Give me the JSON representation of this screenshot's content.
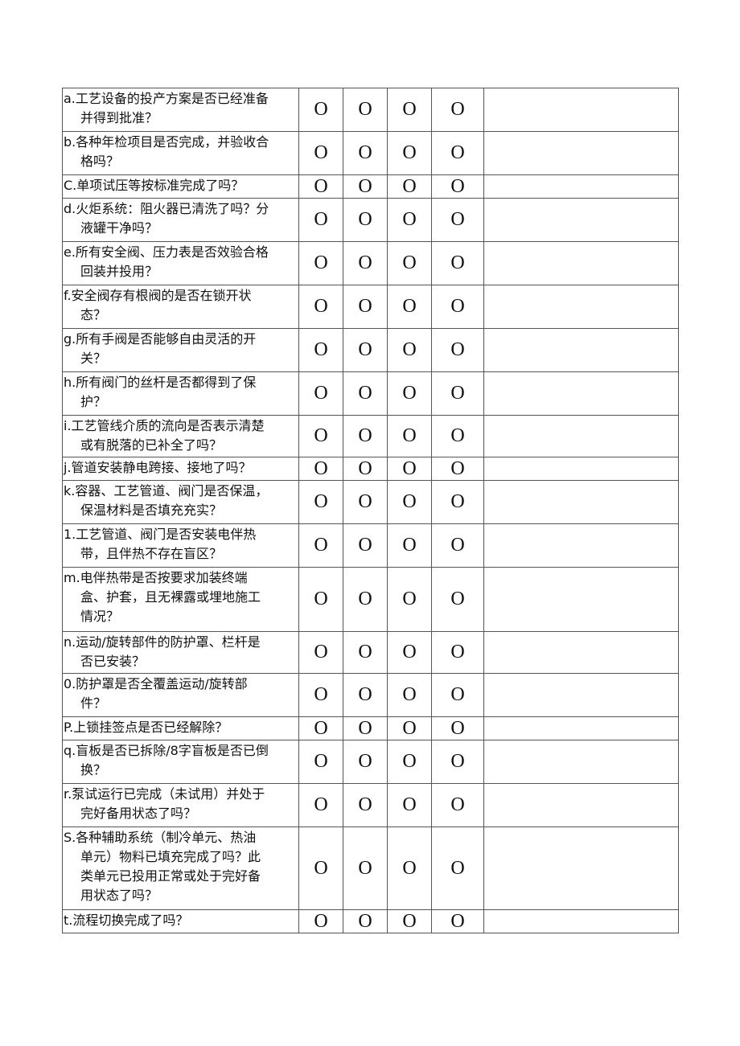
{
  "mark": "O",
  "rows": [
    {
      "lines": [
        "a.工艺设备的投产方案是否已经准备",
        "并得到批准？"
      ],
      "h": 54
    },
    {
      "lines": [
        "b.各种年检项目是否完成，并验收合",
        "格吗？"
      ],
      "h": 54
    },
    {
      "lines": [
        "C.单项试压等按标准完成了吗？"
      ],
      "h": 29
    },
    {
      "lines": [
        "d.火炬系统：阻火器已清洗了吗？分",
        "液罐干净吗？"
      ],
      "h": 54
    },
    {
      "lines": [
        "e.所有安全阀、压力表是否效验合格",
        "回装并投用？"
      ],
      "h": 54
    },
    {
      "lines": [
        "f.安全阀存有根阀的是否在锁开状",
        "态？"
      ],
      "h": 54
    },
    {
      "lines": [
        "g.所有手阀是否能够自由灵活的开",
        "关？"
      ],
      "h": 54
    },
    {
      "lines": [
        "h.所有阀门的丝杆是否都得到了保",
        "护？"
      ],
      "h": 54
    },
    {
      "lines": [
        "i.工艺管线介质的流向是否表示清楚",
        "或有脱落的已补全了吗？"
      ],
      "h": 52
    },
    {
      "lines": [
        "j.管道安装静电跨接、接地了吗？"
      ],
      "h": 29
    },
    {
      "lines": [
        "k.容器、工艺管道、阀门是否保温，",
        "保温材料是否填充充实？"
      ],
      "h": 54
    },
    {
      "lines": [
        "1.工艺管道、阀门是否安装电伴热",
        "带，且伴热不存在盲区？"
      ],
      "h": 54
    },
    {
      "lines": [
        "m.电伴热带是否按要求加装终端",
        "盒、护套，且无裸露或埋地施工",
        "情况？"
      ],
      "h": 80
    },
    {
      "lines": [
        "n.运动/旋转部件的防护罩、栏杆是",
        "否已安装？"
      ],
      "h": 52
    },
    {
      "lines": [
        "0.防护罩是否全覆盖运动/旋转部",
        "件？"
      ],
      "h": 54
    },
    {
      "lines": [
        "P.上锁挂签点是否已经解除？"
      ],
      "h": 29
    },
    {
      "lines": [
        "q.盲板是否已拆除/8字盲板是否已倒",
        "换？"
      ],
      "h": 54
    },
    {
      "lines": [
        "r.泵试运行已完成（未试用）并处于",
        "完好备用状态了吗？"
      ],
      "h": 54
    },
    {
      "lines": [
        "S.各种辅助系统（制冷单元、热油",
        "单元）物料已填充完成了吗？此",
        "类单元已投用正常或处于完好备",
        "用状态了吗？"
      ],
      "h": 103
    },
    {
      "lines": [
        "t.流程切换完成了吗？"
      ],
      "h": 29
    }
  ]
}
